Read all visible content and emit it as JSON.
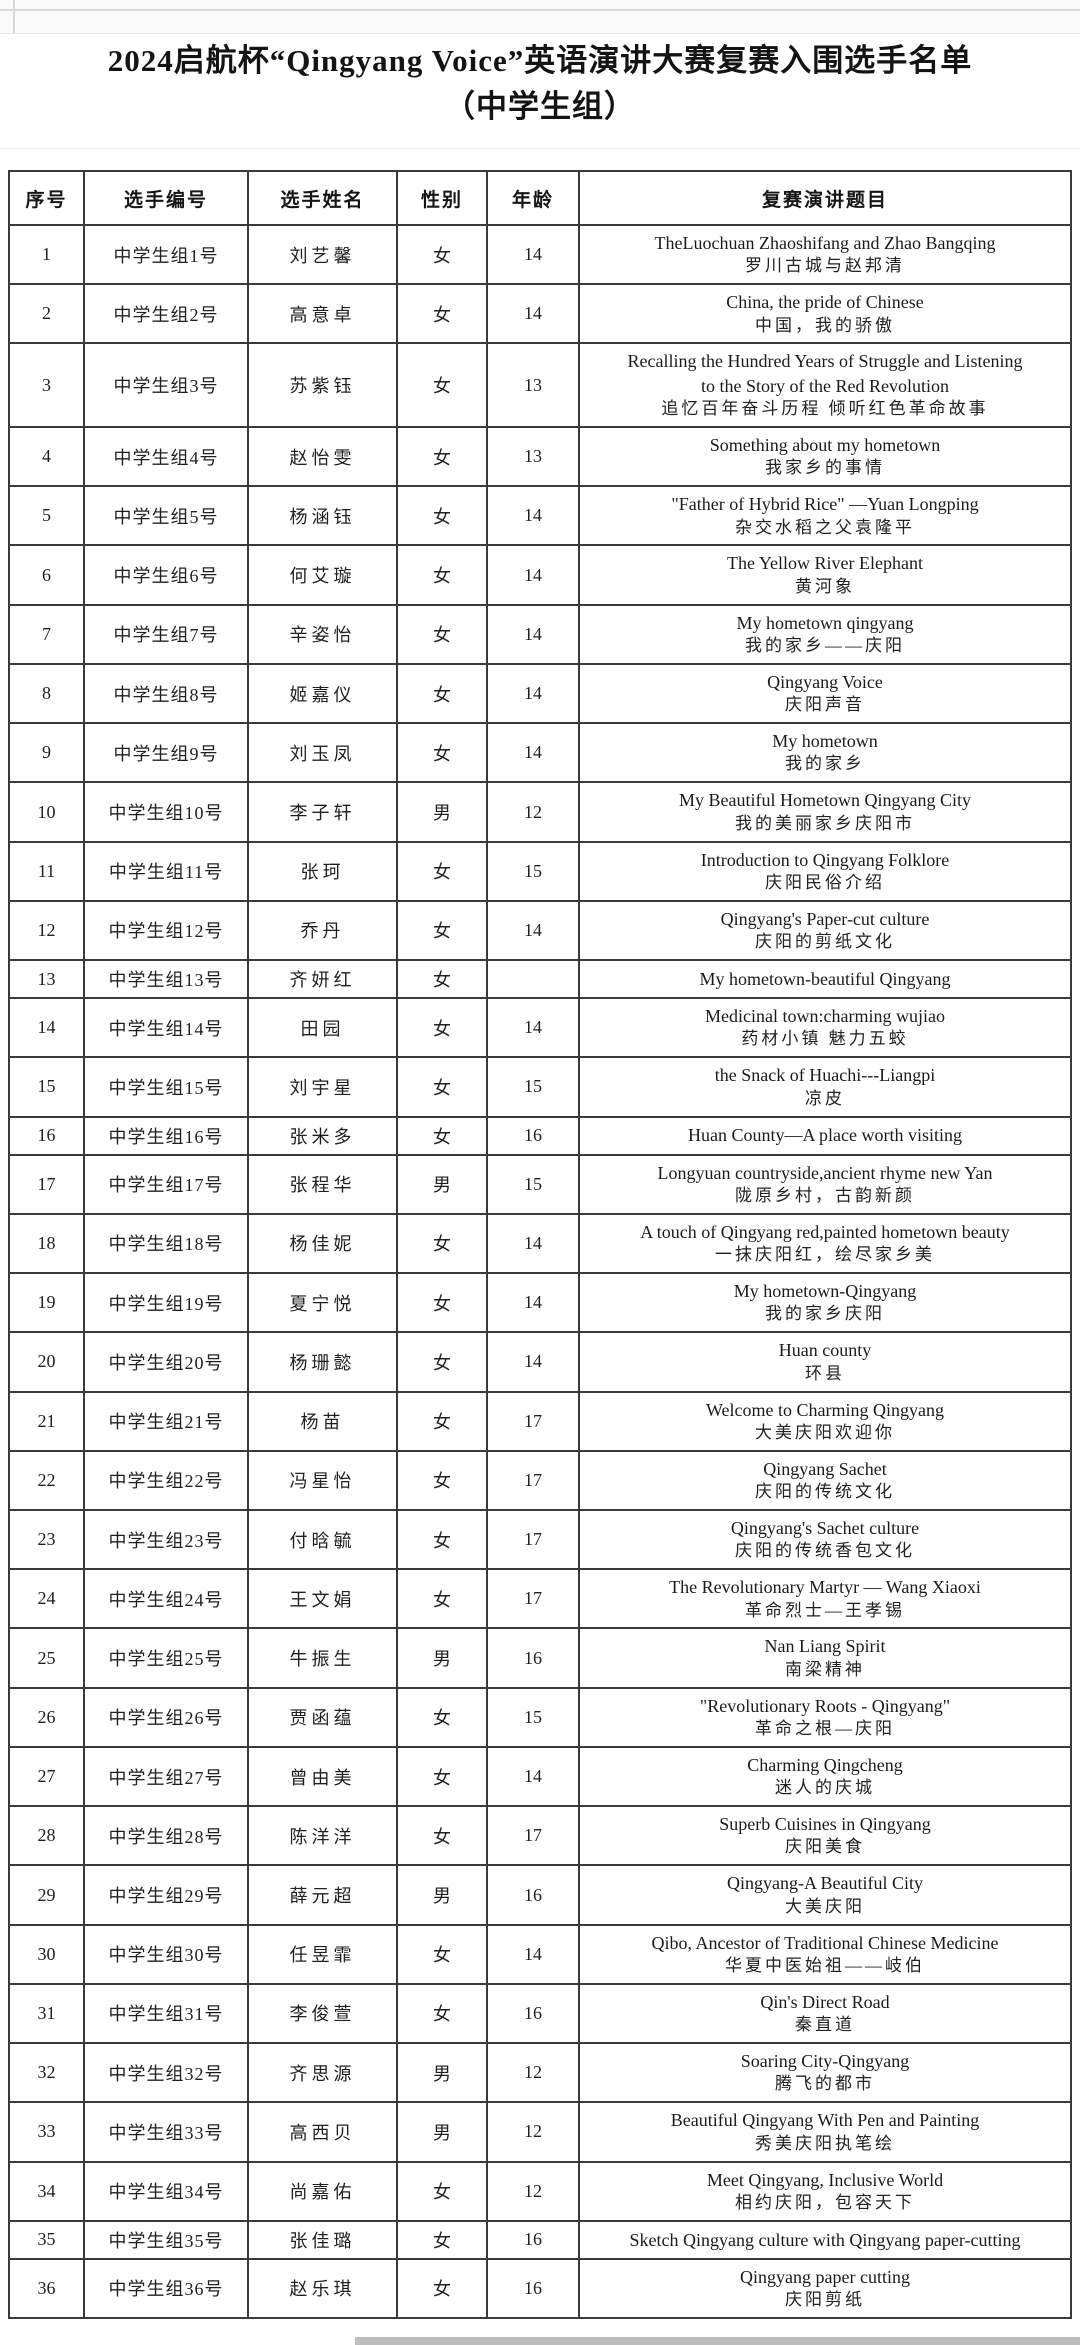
{
  "title": {
    "line1": "2024启航杯“Qingyang Voice”英语演讲大赛复赛入围选手名单",
    "line2": "（中学生组）"
  },
  "table": {
    "headers": [
      "序号",
      "选手编号",
      "选手姓名",
      "性别",
      "年龄",
      "复赛演讲题目"
    ],
    "rows": [
      {
        "no": "1",
        "id": "中学生组1号",
        "name": "刘艺馨",
        "gender": "女",
        "age": "14",
        "topic_en": "TheLuochuan Zhaoshifang and Zhao Bangqing",
        "topic_zh": "罗川古城与赵邦清"
      },
      {
        "no": "2",
        "id": "中学生组2号",
        "name": "高意卓",
        "gender": "女",
        "age": "14",
        "topic_en": "China, the pride of Chinese",
        "topic_zh": "中国，我的骄傲"
      },
      {
        "no": "3",
        "id": "中学生组3号",
        "name": "苏紫钰",
        "gender": "女",
        "age": "13",
        "topic_en": "Recalling the Hundred Years of Struggle and Listening to the Story of the Red Revolution",
        "topic_zh": "追忆百年奋斗历程 倾听红色革命故事"
      },
      {
        "no": "4",
        "id": "中学生组4号",
        "name": "赵怡雯",
        "gender": "女",
        "age": "13",
        "topic_en": "Something about my hometown",
        "topic_zh": "我家乡的事情"
      },
      {
        "no": "5",
        "id": "中学生组5号",
        "name": "杨涵钰",
        "gender": "女",
        "age": "14",
        "topic_en": "\"Father of Hybrid Rice\" —Yuan Longping",
        "topic_zh": "杂交水稻之父袁隆平"
      },
      {
        "no": "6",
        "id": "中学生组6号",
        "name": "何艾璇",
        "gender": "女",
        "age": "14",
        "topic_en": "The Yellow River Elephant",
        "topic_zh": "黄河象"
      },
      {
        "no": "7",
        "id": "中学生组7号",
        "name": "辛姿怡",
        "gender": "女",
        "age": "14",
        "topic_en": "My hometown qingyang",
        "topic_zh": "我的家乡——庆阳"
      },
      {
        "no": "8",
        "id": "中学生组8号",
        "name": "姬嘉仪",
        "gender": "女",
        "age": "14",
        "topic_en": "Qingyang Voice",
        "topic_zh": "庆阳声音"
      },
      {
        "no": "9",
        "id": "中学生组9号",
        "name": "刘玉凤",
        "gender": "女",
        "age": "14",
        "topic_en": "My hometown",
        "topic_zh": "我的家乡"
      },
      {
        "no": "10",
        "id": "中学生组10号",
        "name": "李子轩",
        "gender": "男",
        "age": "12",
        "topic_en": "My Beautiful Hometown Qingyang City",
        "topic_zh": "我的美丽家乡庆阳市"
      },
      {
        "no": "11",
        "id": "中学生组11号",
        "name": "张珂",
        "gender": "女",
        "age": "15",
        "topic_en": "Introduction to Qingyang Folklore",
        "topic_zh": "庆阳民俗介绍"
      },
      {
        "no": "12",
        "id": "中学生组12号",
        "name": "乔丹",
        "gender": "女",
        "age": "14",
        "topic_en": "Qingyang's Paper-cut culture",
        "topic_zh": "庆阳的剪纸文化"
      },
      {
        "no": "13",
        "id": "中学生组13号",
        "name": "齐妍红",
        "gender": "女",
        "age": "",
        "topic_en": "My hometown-beautiful Qingyang",
        "topic_zh": ""
      },
      {
        "no": "14",
        "id": "中学生组14号",
        "name": "田园",
        "gender": "女",
        "age": "14",
        "topic_en": "Medicinal town:charming wujiao",
        "topic_zh": "药材小镇 魅力五蛟"
      },
      {
        "no": "15",
        "id": "中学生组15号",
        "name": "刘宇星",
        "gender": "女",
        "age": "15",
        "topic_en": "the Snack of Huachi---Liangpi",
        "topic_zh": "凉皮"
      },
      {
        "no": "16",
        "id": "中学生组16号",
        "name": "张米多",
        "gender": "女",
        "age": "16",
        "topic_en": "Huan County—A place worth visiting",
        "topic_zh": ""
      },
      {
        "no": "17",
        "id": "中学生组17号",
        "name": "张程华",
        "gender": "男",
        "age": "15",
        "topic_en": "Longyuan countryside,ancient rhyme new Yan",
        "topic_zh": "陇原乡村，古韵新颜"
      },
      {
        "no": "18",
        "id": "中学生组18号",
        "name": "杨佳妮",
        "gender": "女",
        "age": "14",
        "topic_en": "A touch of Qingyang red,painted hometown beauty",
        "topic_zh": "一抹庆阳红，绘尽家乡美"
      },
      {
        "no": "19",
        "id": "中学生组19号",
        "name": "夏宁悦",
        "gender": "女",
        "age": "14",
        "topic_en": "My hometown-Qingyang",
        "topic_zh": "我的家乡庆阳"
      },
      {
        "no": "20",
        "id": "中学生组20号",
        "name": "杨珊懿",
        "gender": "女",
        "age": "14",
        "topic_en": "Huan county",
        "topic_zh": "环县"
      },
      {
        "no": "21",
        "id": "中学生组21号",
        "name": "杨苗",
        "gender": "女",
        "age": "17",
        "topic_en": "Welcome to Charming Qingyang",
        "topic_zh": "大美庆阳欢迎你"
      },
      {
        "no": "22",
        "id": "中学生组22号",
        "name": "冯星怡",
        "gender": "女",
        "age": "17",
        "topic_en": "Qingyang Sachet",
        "topic_zh": "庆阳的传统文化"
      },
      {
        "no": "23",
        "id": "中学生组23号",
        "name": "付晗毓",
        "gender": "女",
        "age": "17",
        "topic_en": "Qingyang's Sachet culture",
        "topic_zh": "庆阳的传统香包文化"
      },
      {
        "no": "24",
        "id": "中学生组24号",
        "name": "王文娟",
        "gender": "女",
        "age": "17",
        "topic_en": "The Revolutionary Martyr — Wang Xiaoxi",
        "topic_zh": "革命烈士—王孝锡"
      },
      {
        "no": "25",
        "id": "中学生组25号",
        "name": "牛振生",
        "gender": "男",
        "age": "16",
        "topic_en": "Nan Liang Spirit",
        "topic_zh": "南梁精神"
      },
      {
        "no": "26",
        "id": "中学生组26号",
        "name": "贾函蕴",
        "gender": "女",
        "age": "15",
        "topic_en": "\"Revolutionary Roots - Qingyang\"",
        "topic_zh": "革命之根—庆阳"
      },
      {
        "no": "27",
        "id": "中学生组27号",
        "name": "曾由美",
        "gender": "女",
        "age": "14",
        "topic_en": "Charming Qingcheng",
        "topic_zh": "迷人的庆城"
      },
      {
        "no": "28",
        "id": "中学生组28号",
        "name": "陈洋洋",
        "gender": "女",
        "age": "17",
        "topic_en": "Superb Cuisines in Qingyang",
        "topic_zh": "庆阳美食"
      },
      {
        "no": "29",
        "id": "中学生组29号",
        "name": "薛元超",
        "gender": "男",
        "age": "16",
        "topic_en": "Qingyang-A Beautiful City",
        "topic_zh": "大美庆阳"
      },
      {
        "no": "30",
        "id": "中学生组30号",
        "name": "任昱霏",
        "gender": "女",
        "age": "14",
        "topic_en": "Qibo, Ancestor of Traditional Chinese Medicine",
        "topic_zh": "华夏中医始祖——岐伯"
      },
      {
        "no": "31",
        "id": "中学生组31号",
        "name": "李俊萱",
        "gender": "女",
        "age": "16",
        "topic_en": "Qin's Direct Road",
        "topic_zh": "秦直道"
      },
      {
        "no": "32",
        "id": "中学生组32号",
        "name": "齐思源",
        "gender": "男",
        "age": "12",
        "topic_en": "Soaring City-Qingyang",
        "topic_zh": "腾飞的都市"
      },
      {
        "no": "33",
        "id": "中学生组33号",
        "name": "高西贝",
        "gender": "男",
        "age": "12",
        "topic_en": "Beautiful Qingyang With Pen and Painting",
        "topic_zh": "秀美庆阳执笔绘"
      },
      {
        "no": "34",
        "id": "中学生组34号",
        "name": "尚嘉佑",
        "gender": "女",
        "age": "12",
        "topic_en": "Meet Qingyang, Inclusive World",
        "topic_zh": "相约庆阳，包容天下"
      },
      {
        "no": "35",
        "id": "中学生组35号",
        "name": "张佳璐",
        "gender": "女",
        "age": "16",
        "topic_en": "Sketch Qingyang culture with Qingyang paper-cutting",
        "topic_zh": ""
      },
      {
        "no": "36",
        "id": "中学生组36号",
        "name": "赵乐琪",
        "gender": "女",
        "age": "16",
        "topic_en": "Qingyang paper cutting",
        "topic_zh": "庆阳剪纸"
      }
    ]
  }
}
